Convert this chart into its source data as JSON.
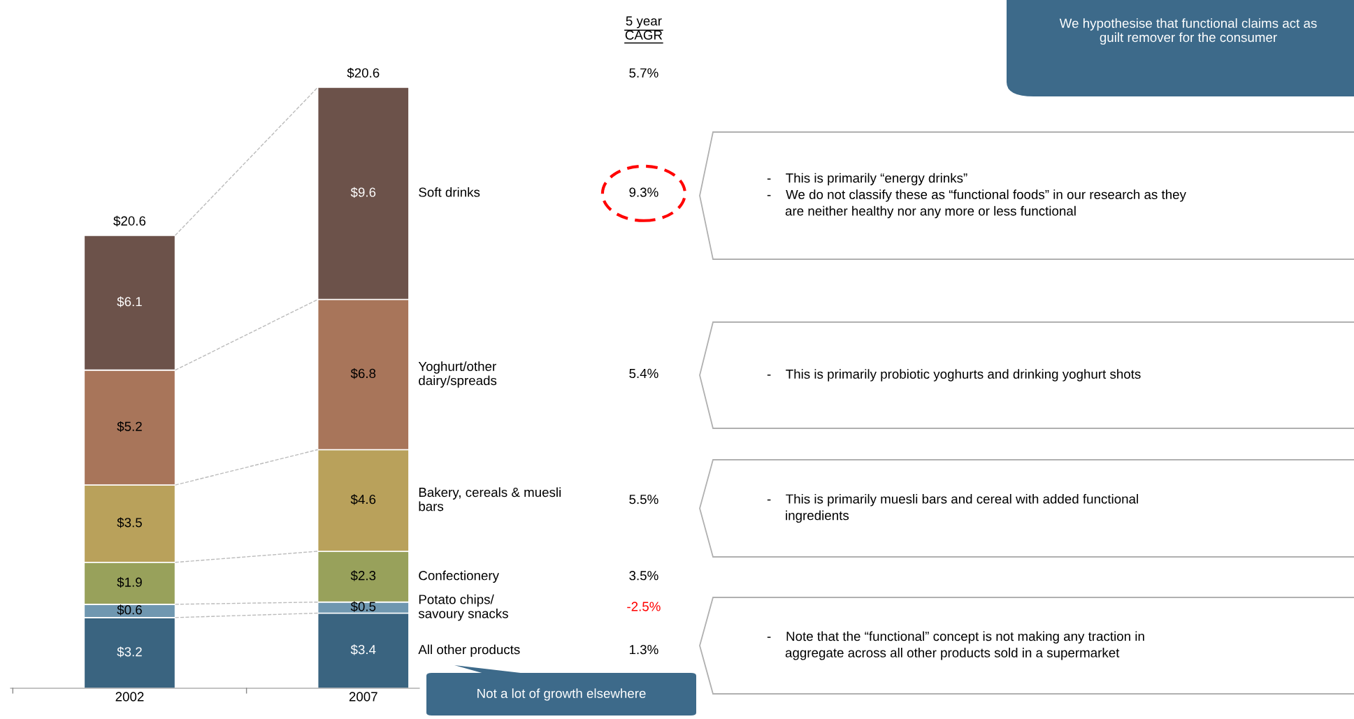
{
  "chart_data": {
    "type": "bar",
    "stacked": true,
    "categories": [
      "2002",
      "2007"
    ],
    "data_labels": false,
    "series": [
      {
        "name": "All other products",
        "color": "#3a6480",
        "values": [
          3.2,
          3.4
        ],
        "value_labels": [
          "$3.2",
          "$3.4"
        ]
      },
      {
        "name": "Potato chips/\nsavoury snacks",
        "color": "#6f97b0",
        "values": [
          0.6,
          0.5
        ],
        "value_labels": [
          "$0.6",
          "$0.5"
        ]
      },
      {
        "name": "Confectionery",
        "color": "#98a15b",
        "values": [
          1.9,
          2.3
        ],
        "value_labels": [
          "$1.9",
          "$2.3"
        ]
      },
      {
        "name": "Bakery, cereals & muesli\nbars",
        "color": "#b9a15b",
        "values": [
          3.5,
          4.6
        ],
        "value_labels": [
          "$3.5",
          "$4.6"
        ]
      },
      {
        "name": "Yoghurt/other\ndairy/spreads",
        "color": "#a8755a",
        "values": [
          5.2,
          6.8
        ],
        "value_labels": [
          "$5.2",
          "$6.8"
        ]
      },
      {
        "name": "Soft drinks",
        "color": "#6c524a",
        "values": [
          6.1,
          9.6
        ],
        "value_labels": [
          "$6.1",
          "$9.6"
        ]
      }
    ],
    "annotations": [
      "We hypothesise that functional claims act as\nguilt remover for the consumer",
      "5 year\nCAGR",
      "5.7%",
      "1.3%",
      "-2.5%",
      "3.5%",
      "5.5%",
      "5.4%",
      "9.3%",
      "-    This is primarily “energy drinks”\n-    We do not classify these as “functional foods” in our research as they\n     are neither healthy nor any more or less functional",
      "-    This is primarily probiotic yoghurts and drinking yoghurt shots",
      "-    This is primarily muesli bars and cereal with added functional\n     ingredients",
      "-    Note that the “functional” concept is not making any traction in\n     aggregate across all other products sold in a supermarket",
      "Not a lot of growth elsewhere",
      "$20.6",
      "$20.6"
    ]
  }
}
